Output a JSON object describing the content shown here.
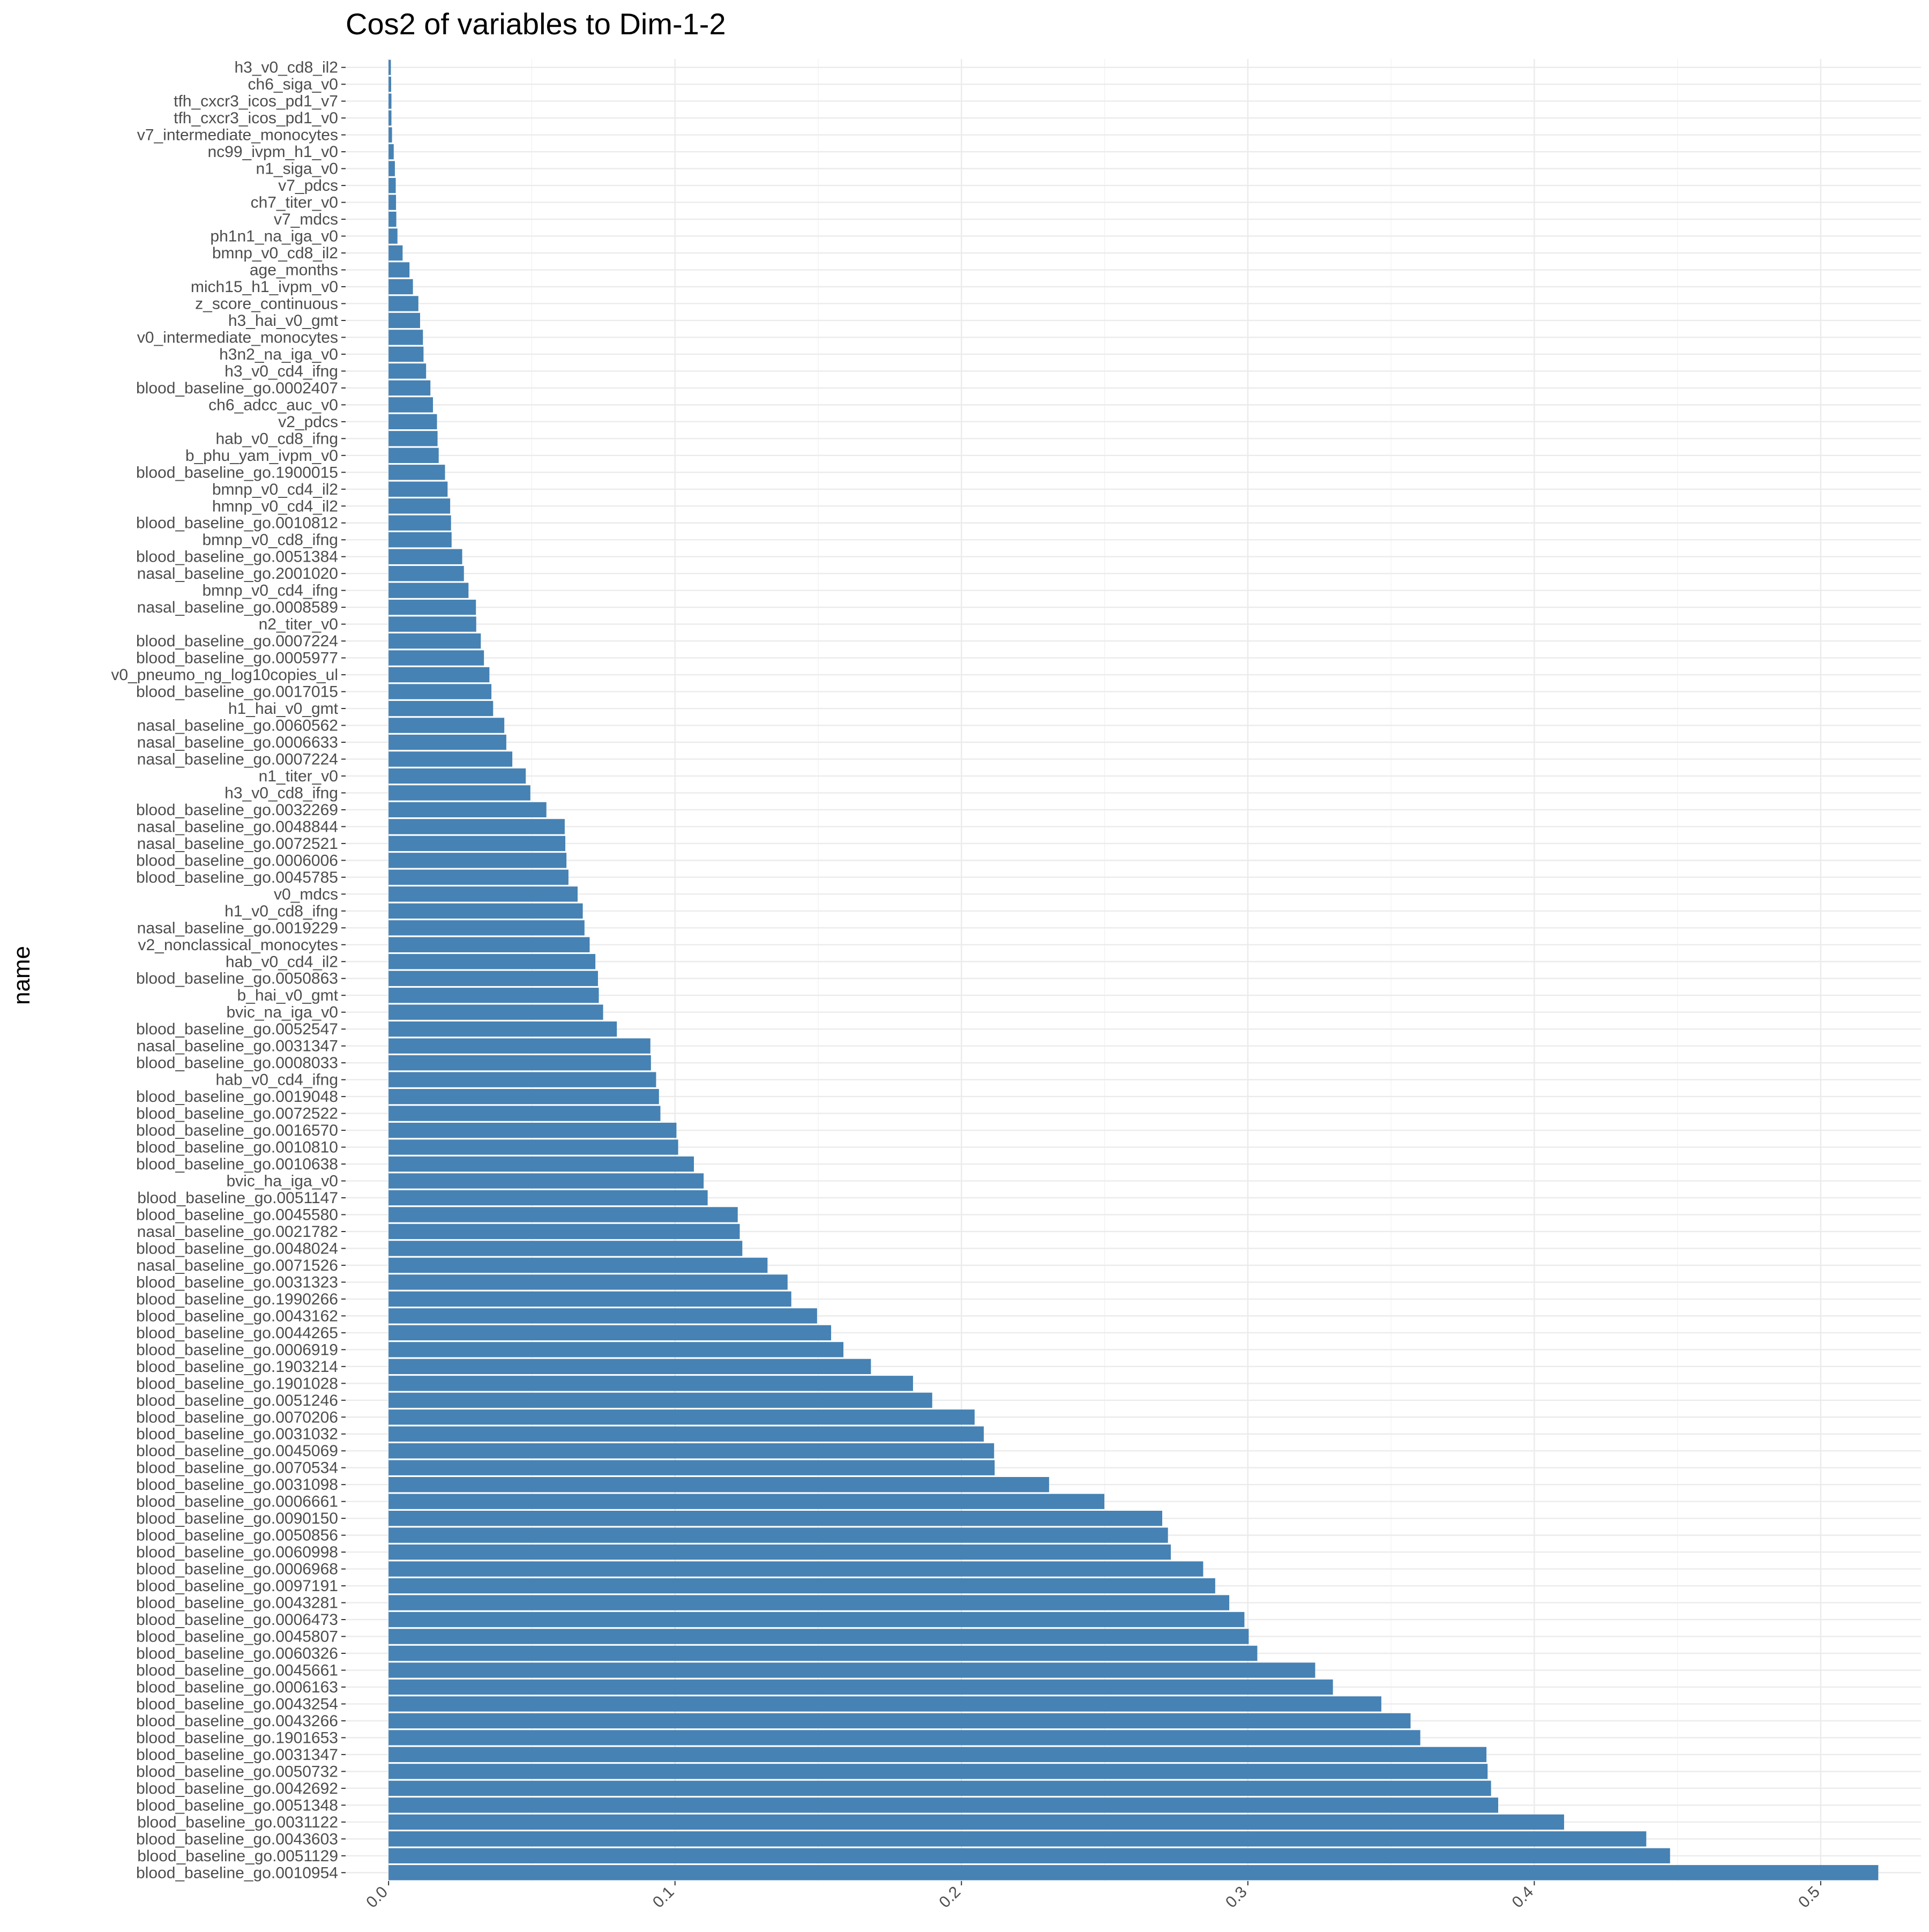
{
  "chart_data": {
    "type": "bar",
    "orientation": "horizontal",
    "title": "Cos2 of variables to Dim-1-2",
    "xlabel": "",
    "ylabel": "name",
    "xlim": [
      -0.015,
      0.535
    ],
    "x_ticks": [
      "0.0",
      "0.1",
      "0.2",
      "0.3",
      "0.4",
      "0.5"
    ],
    "bar_color": "#4682b4",
    "grid": true,
    "categories": [
      "h3_v0_cd8_il2",
      "ch6_siga_v0",
      "tfh_cxcr3_icos_pd1_v7",
      "tfh_cxcr3_icos_pd1_v0",
      "v7_intermediate_monocytes",
      "nc99_ivpm_h1_v0",
      "n1_siga_v0",
      "v7_pdcs",
      "ch7_titer_v0",
      "v7_mdcs",
      "ph1n1_na_iga_v0",
      "bmnp_v0_cd8_il2",
      "age_months",
      "mich15_h1_ivpm_v0",
      "z_score_continuous",
      "h3_hai_v0_gmt",
      "v0_intermediate_monocytes",
      "h3n2_na_iga_v0",
      "h3_v0_cd4_ifng",
      "blood_baseline_go.0002407",
      "ch6_adcc_auc_v0",
      "v2_pdcs",
      "hab_v0_cd8_ifng",
      "b_phu_yam_ivpm_v0",
      "blood_baseline_go.1900015",
      "bmnp_v0_cd4_il2",
      "hmnp_v0_cd4_il2",
      "blood_baseline_go.0010812",
      "bmnp_v0_cd8_ifng",
      "blood_baseline_go.0051384",
      "nasal_baseline_go.2001020",
      "bmnp_v0_cd4_ifng",
      "nasal_baseline_go.0008589",
      "n2_titer_v0",
      "blood_baseline_go.0007224",
      "blood_baseline_go.0005977",
      "v0_pneumo_ng_log10copies_ul",
      "blood_baseline_go.0017015",
      "h1_hai_v0_gmt",
      "nasal_baseline_go.0060562",
      "nasal_baseline_go.0006633",
      "nasal_baseline_go.0007224",
      "n1_titer_v0",
      "h3_v0_cd8_ifng",
      "blood_baseline_go.0032269",
      "nasal_baseline_go.0048844",
      "nasal_baseline_go.0072521",
      "blood_baseline_go.0006006",
      "blood_baseline_go.0045785",
      "v0_mdcs",
      "h1_v0_cd8_ifng",
      "nasal_baseline_go.0019229",
      "v2_nonclassical_monocytes",
      "hab_v0_cd4_il2",
      "blood_baseline_go.0050863",
      "b_hai_v0_gmt",
      "bvic_na_iga_v0",
      "blood_baseline_go.0052547",
      "nasal_baseline_go.0031347",
      "blood_baseline_go.0008033",
      "hab_v0_cd4_ifng",
      "blood_baseline_go.0019048",
      "blood_baseline_go.0072522",
      "blood_baseline_go.0016570",
      "blood_baseline_go.0010810",
      "blood_baseline_go.0010638",
      "bvic_ha_iga_v0",
      "blood_baseline_go.0051147",
      "blood_baseline_go.0045580",
      "nasal_baseline_go.0021782",
      "blood_baseline_go.0048024",
      "nasal_baseline_go.0071526",
      "blood_baseline_go.0031323",
      "blood_baseline_go.1990266",
      "blood_baseline_go.0043162",
      "blood_baseline_go.0044265",
      "blood_baseline_go.0006919",
      "blood_baseline_go.1903214",
      "blood_baseline_go.1901028",
      "blood_baseline_go.0051246",
      "blood_baseline_go.0070206",
      "blood_baseline_go.0031032",
      "blood_baseline_go.0045069",
      "blood_baseline_go.0070534",
      "blood_baseline_go.0031098",
      "blood_baseline_go.0006661",
      "blood_baseline_go.0090150",
      "blood_baseline_go.0050856",
      "blood_baseline_go.0060998",
      "blood_baseline_go.0006968",
      "blood_baseline_go.0097191",
      "blood_baseline_go.0043281",
      "blood_baseline_go.0006473",
      "blood_baseline_go.0045807",
      "blood_baseline_go.0060326",
      "blood_baseline_go.0045661",
      "blood_baseline_go.0006163",
      "blood_baseline_go.0043254",
      "blood_baseline_go.0043266",
      "blood_baseline_go.1901653",
      "blood_baseline_go.0031347",
      "blood_baseline_go.0050732",
      "blood_baseline_go.0042692",
      "blood_baseline_go.0051348",
      "blood_baseline_go.0031122",
      "blood_baseline_go.0043603",
      "blood_baseline_go.0051129",
      "blood_baseline_go.0010954"
    ],
    "values": [
      0.0008,
      0.0009,
      0.001,
      0.001,
      0.0012,
      0.0018,
      0.0022,
      0.0025,
      0.0026,
      0.0027,
      0.0031,
      0.0049,
      0.0073,
      0.0085,
      0.0104,
      0.011,
      0.012,
      0.0122,
      0.0131,
      0.0146,
      0.0155,
      0.0169,
      0.0171,
      0.0175,
      0.0197,
      0.0206,
      0.0215,
      0.0218,
      0.022,
      0.0257,
      0.0263,
      0.0279,
      0.0305,
      0.0306,
      0.0322,
      0.0333,
      0.0352,
      0.0359,
      0.0365,
      0.0404,
      0.0411,
      0.0432,
      0.0479,
      0.0495,
      0.0551,
      0.0615,
      0.0617,
      0.0621,
      0.0628,
      0.066,
      0.0678,
      0.0684,
      0.0702,
      0.0722,
      0.0731,
      0.0734,
      0.0749,
      0.0797,
      0.0914,
      0.0916,
      0.0934,
      0.0944,
      0.0949,
      0.1005,
      0.1011,
      0.1066,
      0.11,
      0.1114,
      0.1219,
      0.1226,
      0.1235,
      0.1323,
      0.1393,
      0.1406,
      0.1496,
      0.1545,
      0.1588,
      0.1684,
      0.1831,
      0.1898,
      0.2046,
      0.2078,
      0.2114,
      0.2116,
      0.2306,
      0.2499,
      0.2701,
      0.2721,
      0.2731,
      0.2844,
      0.2886,
      0.2935,
      0.2988,
      0.3003,
      0.3033,
      0.3235,
      0.3297,
      0.3466,
      0.3568,
      0.3602,
      0.3833,
      0.3837,
      0.3849,
      0.3874,
      0.4104,
      0.4391,
      0.4474,
      0.5201
    ]
  }
}
